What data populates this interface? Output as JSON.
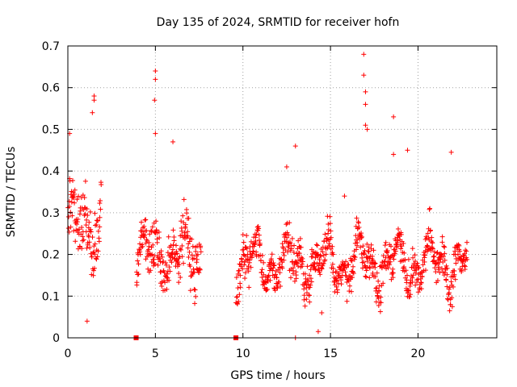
{
  "chart_data": {
    "type": "scatter",
    "title": "Day 135 of 2024, SRMTID for receiver hofn",
    "xlabel": "GPS time / hours",
    "ylabel": "SRMTID / TECUs",
    "xlim": [
      0,
      24.5
    ],
    "ylim": [
      0,
      0.7
    ],
    "xticks": [
      0,
      5,
      10,
      15,
      20
    ],
    "yticks": [
      0,
      0.1,
      0.2,
      0.3,
      0.4,
      0.5,
      0.6,
      0.7
    ],
    "grid": true,
    "marker": "plus",
    "color": "#ff0000",
    "series": [
      {
        "name": "SRMTID",
        "segments": [
          {
            "x_start": 0.0,
            "x_end": 1.9,
            "mean": 0.27,
            "spread": 0.1
          },
          {
            "x_start": 3.9,
            "x_end": 7.6,
            "mean": 0.2,
            "spread": 0.08
          },
          {
            "x_start": 9.6,
            "x_end": 22.8,
            "mean": 0.18,
            "spread": 0.06
          }
        ],
        "outliers": [
          {
            "x": 0.1,
            "y": 0.49
          },
          {
            "x": 1.5,
            "y": 0.58
          },
          {
            "x": 1.5,
            "y": 0.57
          },
          {
            "x": 1.4,
            "y": 0.54
          },
          {
            "x": 1.1,
            "y": 0.04
          },
          {
            "x": 5.0,
            "y": 0.64
          },
          {
            "x": 5.0,
            "y": 0.62
          },
          {
            "x": 4.95,
            "y": 0.57
          },
          {
            "x": 5.0,
            "y": 0.49
          },
          {
            "x": 6.0,
            "y": 0.47
          },
          {
            "x": 12.5,
            "y": 0.41
          },
          {
            "x": 13.0,
            "y": 0.46
          },
          {
            "x": 13.0,
            "y": 0.0
          },
          {
            "x": 14.3,
            "y": 0.015
          },
          {
            "x": 16.9,
            "y": 0.68
          },
          {
            "x": 16.9,
            "y": 0.63
          },
          {
            "x": 17.0,
            "y": 0.59
          },
          {
            "x": 17.0,
            "y": 0.56
          },
          {
            "x": 17.0,
            "y": 0.51
          },
          {
            "x": 17.1,
            "y": 0.5
          },
          {
            "x": 18.6,
            "y": 0.53
          },
          {
            "x": 18.6,
            "y": 0.44
          },
          {
            "x": 19.4,
            "y": 0.45
          },
          {
            "x": 21.9,
            "y": 0.445
          },
          {
            "x": 15.8,
            "y": 0.34
          },
          {
            "x": 14.5,
            "y": 0.06
          }
        ]
      }
    ],
    "gap_markers": [
      {
        "x": 3.9,
        "y": 0.0
      },
      {
        "x": 9.6,
        "y": 0.0
      }
    ]
  }
}
